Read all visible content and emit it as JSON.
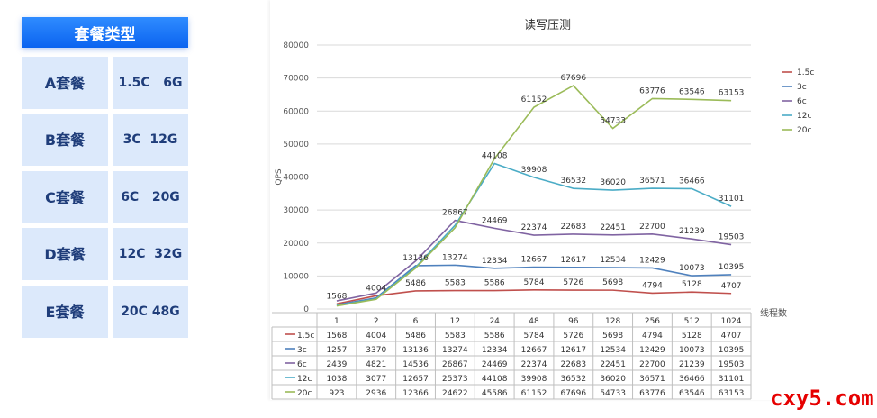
{
  "packages": {
    "header": "套餐类型",
    "rows": [
      {
        "name": "A套餐",
        "spec": "1.5C   6G"
      },
      {
        "name": "B套餐",
        "spec": "3C  12G"
      },
      {
        "name": "C套餐",
        "spec": "6C   20G"
      },
      {
        "name": "D套餐",
        "spec": "12C  32G"
      },
      {
        "name": "E套餐",
        "spec": "20C 48G"
      }
    ]
  },
  "chart_data": {
    "type": "line",
    "title": "读写压测",
    "xlabel": "线程数",
    "ylabel": "QPS",
    "ylim": [
      0,
      80000
    ],
    "yticks": [
      0,
      10000,
      20000,
      30000,
      40000,
      50000,
      60000,
      70000,
      80000
    ],
    "categories": [
      "1",
      "2",
      "6",
      "12",
      "24",
      "48",
      "96",
      "128",
      "256",
      "512",
      "1024"
    ],
    "legend_position": "right",
    "series": [
      {
        "name": "1.5c",
        "color": "#c0504d",
        "values": [
          1568,
          4004,
          5486,
          5583,
          5586,
          5784,
          5726,
          5698,
          4794,
          5128,
          4707
        ]
      },
      {
        "name": "3c",
        "color": "#4f81bd",
        "values": [
          1257,
          3370,
          13136,
          13274,
          12334,
          12667,
          12617,
          12534,
          12429,
          10073,
          10395
        ]
      },
      {
        "name": "6c",
        "color": "#8064a2",
        "values": [
          2439,
          4821,
          14536,
          26867,
          24469,
          22374,
          22683,
          22451,
          22700,
          21239,
          19503
        ]
      },
      {
        "name": "12c",
        "color": "#4bacc6",
        "values": [
          1038,
          3077,
          12657,
          25373,
          44108,
          39908,
          36532,
          36020,
          36571,
          36466,
          31101
        ]
      },
      {
        "name": "20c",
        "color": "#9bbb59",
        "values": [
          923,
          2936,
          12366,
          24622,
          45586,
          61152,
          67696,
          54733,
          63776,
          63546,
          63153
        ]
      }
    ],
    "data_labels": [
      {
        "label": "1568",
        "x_index": 0,
        "value": 1568,
        "series": "1.5c"
      },
      {
        "label": "4004",
        "x_index": 1,
        "value": 4004,
        "series": "1.5c"
      },
      {
        "label": "5486",
        "x_index": 2,
        "value": 5486,
        "series": "1.5c"
      },
      {
        "label": "5583",
        "x_index": 3,
        "value": 5583,
        "series": "1.5c"
      },
      {
        "label": "5586",
        "x_index": 4,
        "value": 5586,
        "series": "1.5c"
      },
      {
        "label": "5784",
        "x_index": 5,
        "value": 5784,
        "series": "1.5c"
      },
      {
        "label": "5726",
        "x_index": 6,
        "value": 5726,
        "series": "1.5c"
      },
      {
        "label": "5698",
        "x_index": 7,
        "value": 5698,
        "series": "1.5c"
      },
      {
        "label": "4794",
        "x_index": 8,
        "value": 4794,
        "series": "1.5c"
      },
      {
        "label": "5128",
        "x_index": 9,
        "value": 5128,
        "series": "1.5c"
      },
      {
        "label": "4707",
        "x_index": 10,
        "value": 4707,
        "series": "1.5c"
      },
      {
        "label": "13136",
        "x_index": 2,
        "value": 13136,
        "series": "3c"
      },
      {
        "label": "13274",
        "x_index": 3,
        "value": 13274,
        "series": "3c"
      },
      {
        "label": "12334",
        "x_index": 4,
        "value": 12334,
        "series": "3c"
      },
      {
        "label": "12667",
        "x_index": 5,
        "value": 12667,
        "series": "3c"
      },
      {
        "label": "12617",
        "x_index": 6,
        "value": 12617,
        "series": "3c"
      },
      {
        "label": "12534",
        "x_index": 7,
        "value": 12534,
        "series": "3c"
      },
      {
        "label": "12429",
        "x_index": 8,
        "value": 12429,
        "series": "3c"
      },
      {
        "label": "10073",
        "x_index": 9,
        "value": 10073,
        "series": "3c"
      },
      {
        "label": "10395",
        "x_index": 10,
        "value": 10395,
        "series": "3c"
      },
      {
        "label": "26867",
        "x_index": 3,
        "value": 26867,
        "series": "6c"
      },
      {
        "label": "24469",
        "x_index": 4,
        "value": 24469,
        "series": "6c"
      },
      {
        "label": "22374",
        "x_index": 5,
        "value": 22374,
        "series": "6c"
      },
      {
        "label": "22683",
        "x_index": 6,
        "value": 22683,
        "series": "6c"
      },
      {
        "label": "22451",
        "x_index": 7,
        "value": 22451,
        "series": "6c"
      },
      {
        "label": "22700",
        "x_index": 8,
        "value": 22700,
        "series": "6c"
      },
      {
        "label": "21239",
        "x_index": 9,
        "value": 21239,
        "series": "6c"
      },
      {
        "label": "19503",
        "x_index": 10,
        "value": 19503,
        "series": "6c"
      },
      {
        "label": "44108",
        "x_index": 4,
        "value": 44108,
        "series": "12c"
      },
      {
        "label": "39908",
        "x_index": 5,
        "value": 39908,
        "series": "12c"
      },
      {
        "label": "36532",
        "x_index": 6,
        "value": 36532,
        "series": "12c"
      },
      {
        "label": "36020",
        "x_index": 7,
        "value": 36020,
        "series": "12c"
      },
      {
        "label": "36571",
        "x_index": 8,
        "value": 36571,
        "series": "12c"
      },
      {
        "label": "36466",
        "x_index": 9,
        "value": 36466,
        "series": "12c"
      },
      {
        "label": "31101",
        "x_index": 10,
        "value": 31101,
        "series": "12c"
      },
      {
        "label": "61152",
        "x_index": 5,
        "value": 61152,
        "series": "20c"
      },
      {
        "label": "67696",
        "x_index": 6,
        "value": 67696,
        "series": "20c"
      },
      {
        "label": "54733",
        "x_index": 7,
        "value": 54733,
        "series": "20c"
      },
      {
        "label": "63776",
        "x_index": 8,
        "value": 63776,
        "series": "20c"
      },
      {
        "label": "63546",
        "x_index": 9,
        "value": 63546,
        "series": "20c"
      },
      {
        "label": "63153",
        "x_index": 10,
        "value": 63153,
        "series": "20c"
      }
    ]
  },
  "watermark": "cxy5.com"
}
